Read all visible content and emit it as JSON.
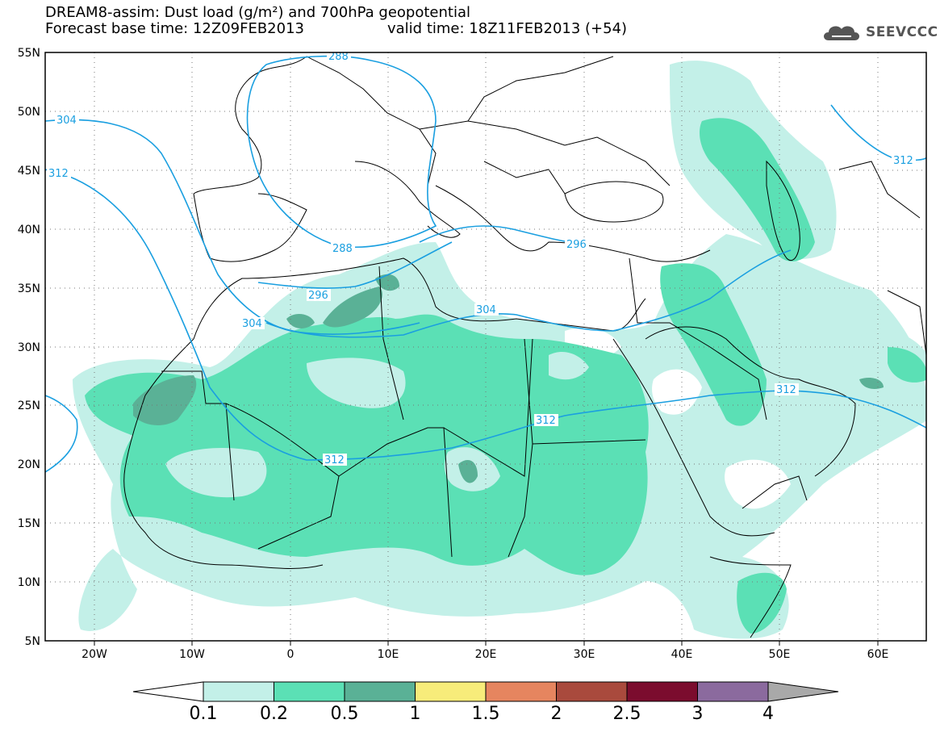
{
  "header": {
    "title_line1": "DREAM8-assim: Dust load (g/m²) and 700hPa geopotential",
    "title_line2": "Forecast base time: 12Z09FEB2013",
    "valid_time": "valid time: 18Z11FEB2013 (+54)",
    "logo_text": "SEEVCCC"
  },
  "map": {
    "lat_labels": [
      "55N",
      "50N",
      "45N",
      "40N",
      "35N",
      "30N",
      "25N",
      "20N",
      "15N",
      "10N",
      "5N"
    ],
    "lon_labels": [
      "20W",
      "10W",
      "0",
      "10E",
      "20E",
      "30E",
      "40E",
      "50E",
      "60E"
    ],
    "contour_labels": [
      "288",
      "304",
      "312",
      "288",
      "296",
      "296",
      "304",
      "304",
      "312",
      "312",
      "312",
      "312"
    ],
    "contour_color": "#1a9fe0",
    "coastline_color": "#000000"
  },
  "legend": {
    "levels": [
      "0.1",
      "0.2",
      "0.5",
      "1",
      "1.5",
      "2",
      "2.5",
      "3",
      "4"
    ],
    "colors": [
      "#c3f0e8",
      "#5be0b5",
      "#5ab196",
      "#f7ec7a",
      "#e6855f",
      "#a94a3d",
      "#7b0c2e",
      "#8b6a9e",
      "#a9a9a9"
    ]
  }
}
